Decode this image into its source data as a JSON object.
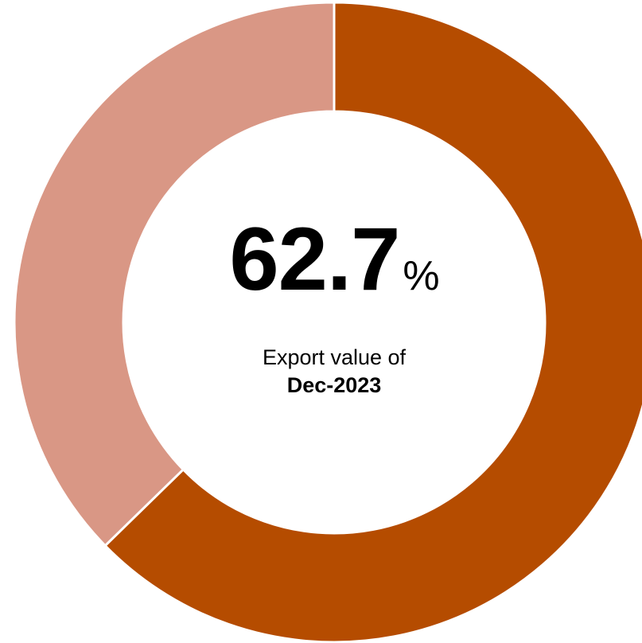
{
  "chart_data": {
    "type": "pie",
    "style": "donut",
    "slices": [
      {
        "value": 62.7,
        "color": "#b54c00"
      },
      {
        "value": 37.3,
        "color": "#d99785"
      }
    ],
    "center_text": {
      "value": "62.7",
      "unit": "%",
      "caption_line1": "Export value of",
      "caption_line2": "Dec-2023"
    }
  }
}
